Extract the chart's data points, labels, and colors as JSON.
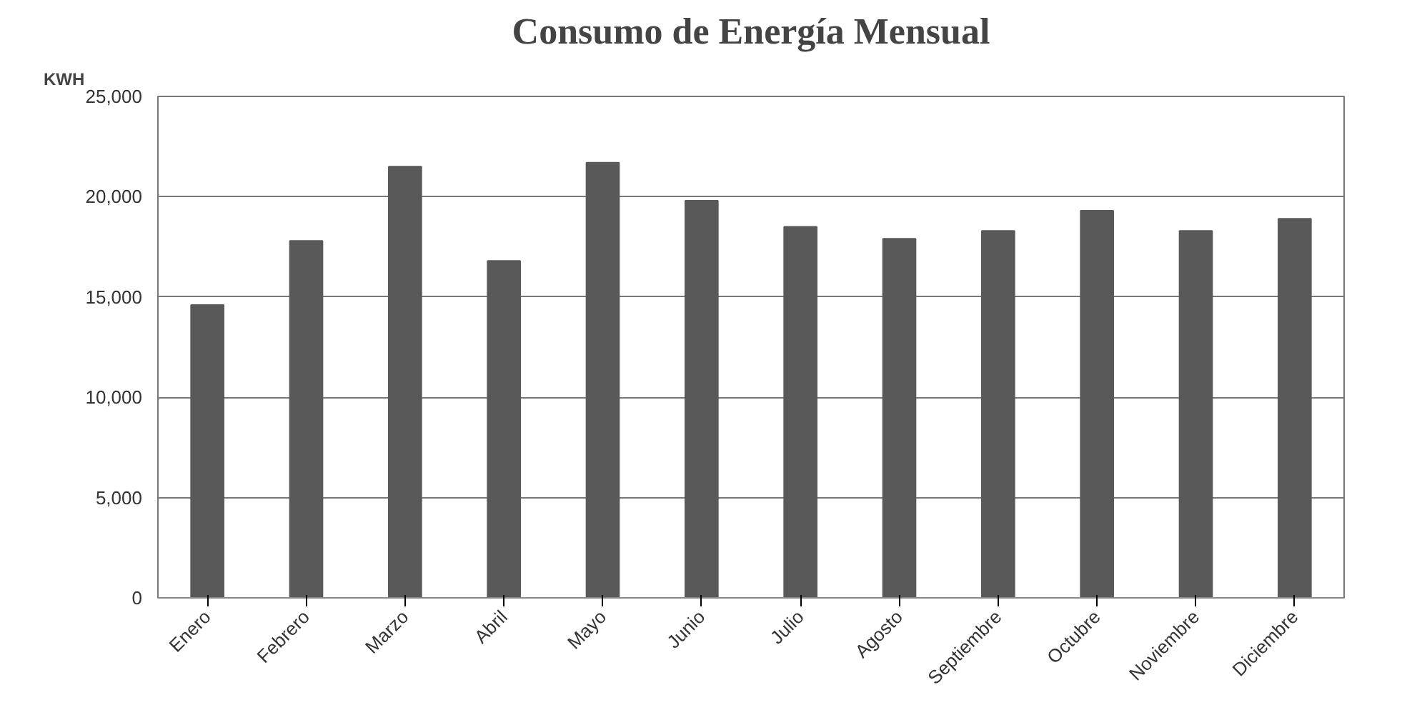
{
  "chart_data": {
    "type": "bar",
    "title": "Consumo de Energía Mensual",
    "ylabel": "KWH",
    "categories": [
      "Enero",
      "Febrero",
      "Marzo",
      "Abril",
      "Mayo",
      "Junio",
      "Julio",
      "Agosto",
      "Septiembre",
      "Octubre",
      "Noviembre",
      "Diciembre"
    ],
    "values": [
      14600,
      17800,
      21500,
      16800,
      21700,
      19800,
      18500,
      17900,
      18300,
      19300,
      18300,
      18900
    ],
    "color": "#595959",
    "ylim": [
      0,
      25000
    ],
    "yticks": [
      {
        "value": 0,
        "label": "0"
      },
      {
        "value": 5000,
        "label": "5,000"
      },
      {
        "value": 10000,
        "label": "10,000"
      },
      {
        "value": 15000,
        "label": "15,000"
      },
      {
        "value": 20000,
        "label": "20,000"
      },
      {
        "value": 25000,
        "label": "25,000"
      }
    ],
    "grid": "y"
  }
}
